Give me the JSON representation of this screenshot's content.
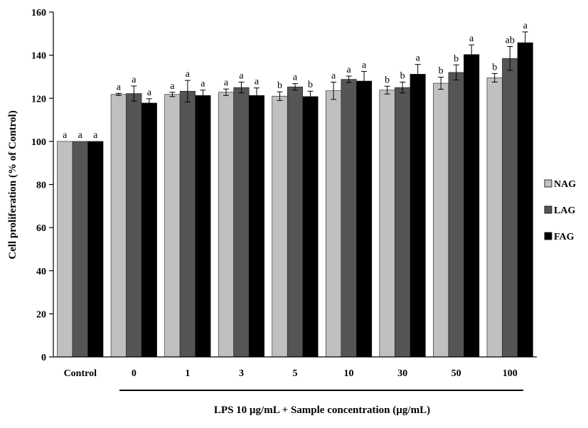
{
  "chart_data": {
    "type": "bar",
    "title": "",
    "ylabel": "Cell proliferation (% of Control)",
    "xlabel": "LPS 10 µg/mL + Sample concentration (µg/mL)",
    "ylim": [
      0,
      160
    ],
    "yticks": [
      "0",
      "20",
      "40",
      "60",
      "80",
      "100",
      "120",
      "140",
      "160"
    ],
    "categories": [
      "Control",
      "0",
      "1",
      "3",
      "5",
      "10",
      "30",
      "50",
      "100"
    ],
    "grid": false,
    "legend_position": "right",
    "series": [
      {
        "name": "NAG",
        "color": "#c0c0c0",
        "values": [
          100,
          121.8,
          121.8,
          122.8,
          121.0,
          123.5,
          123.8,
          127.0,
          129.5
        ],
        "errors": [
          0,
          0.5,
          1.0,
          1.5,
          2.0,
          4.0,
          1.8,
          2.8,
          2.0
        ],
        "labels": [
          "a",
          "a",
          "a",
          "a",
          "b",
          "a",
          "b",
          "b",
          "b"
        ]
      },
      {
        "name": "LAG",
        "color": "#555555",
        "values": [
          100,
          122.2,
          123.3,
          125.0,
          125.3,
          128.8,
          125.0,
          132.0,
          138.5
        ],
        "errors": [
          0,
          3.5,
          5.0,
          2.5,
          1.5,
          1.5,
          2.5,
          3.5,
          5.5
        ],
        "labels": [
          "a",
          "a",
          "a",
          "a",
          "a",
          "a",
          "b",
          "b",
          "ab"
        ]
      },
      {
        "name": "FAG",
        "color": "#000000",
        "values": [
          100,
          117.8,
          121.3,
          121.3,
          120.8,
          128.0,
          131.2,
          140.3,
          145.8
        ],
        "errors": [
          0,
          2.0,
          2.5,
          3.5,
          2.5,
          4.5,
          4.5,
          4.5,
          5.0
        ],
        "labels": [
          "a",
          "a",
          "a",
          "a",
          "b",
          "a",
          "a",
          "a",
          "a"
        ]
      }
    ]
  }
}
